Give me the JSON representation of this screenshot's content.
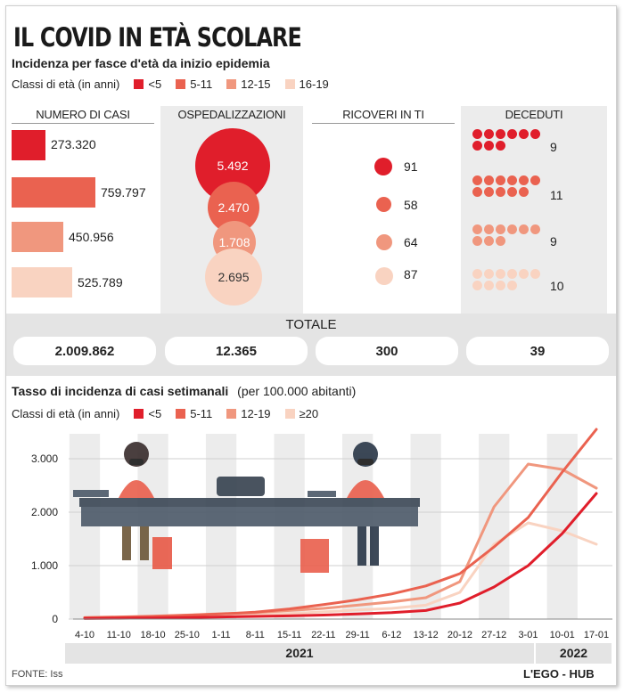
{
  "title": "IL COVID IN ETÀ SCOLARE",
  "section1": {
    "subtitle": "Incidenza per fasce d'età da inizio epidemia",
    "legend_label": "Classi di età (in anni)",
    "legend": [
      {
        "label": "<5",
        "color": "#e01e2b"
      },
      {
        "label": "5-11",
        "color": "#ea6250"
      },
      {
        "label": "12-15",
        "color": "#f0977e"
      },
      {
        "label": "16-19",
        "color": "#f9d3c1"
      }
    ],
    "columns": {
      "casi": {
        "header": "NUMERO DI CASI",
        "values": [
          "273.320",
          "759.797",
          "450.956",
          "525.789"
        ],
        "numbers": [
          273320,
          759797,
          450956,
          525789
        ]
      },
      "osp": {
        "header": "OSPEDALIZZAZIONI",
        "values": [
          "5.492",
          "2.470",
          "1.708",
          "2.695"
        ]
      },
      "ti": {
        "header": "RICOVERI IN TI",
        "values": [
          "91",
          "58",
          "64",
          "87"
        ]
      },
      "deceduti": {
        "header": "DECEDUTI",
        "values": [
          "9",
          "11",
          "9",
          "10"
        ],
        "counts": [
          9,
          11,
          9,
          10
        ]
      }
    },
    "totale": {
      "label": "TOTALE",
      "values": [
        "2.009.862",
        "12.365",
        "300",
        "39"
      ]
    }
  },
  "section2": {
    "subtitle": "Tasso di incidenza di casi setimanali",
    "subtitle_note": "(per 100.000 abitanti)",
    "legend_label": "Classi di età (in anni)",
    "legend": [
      {
        "label": "<5",
        "color": "#e01e2b"
      },
      {
        "label": "5-11",
        "color": "#ea6250"
      },
      {
        "label": "12-19",
        "color": "#f0977e"
      },
      {
        "label": "≥20",
        "color": "#f9d3c1"
      }
    ],
    "years": [
      "2021",
      "2022"
    ]
  },
  "chart_data": {
    "type": "line",
    "title": "Tasso di incidenza di casi setimanali",
    "ylabel": "per 100.000 abitanti",
    "xlabel": "",
    "ylim": [
      0,
      3500
    ],
    "yticks": [
      "0",
      "1.000",
      "2.000",
      "3.000"
    ],
    "ytick_values": [
      0,
      1000,
      2000,
      3000
    ],
    "categories": [
      "4-10",
      "11-10",
      "18-10",
      "25-10",
      "1-11",
      "8-11",
      "15-11",
      "22-11",
      "29-11",
      "6-12",
      "13-12",
      "20-12",
      "27-12",
      "3-01",
      "10-01",
      "17-01"
    ],
    "series": [
      {
        "name": "<5",
        "color": "#e01e2b",
        "values": [
          10,
          15,
          20,
          30,
          40,
          50,
          60,
          75,
          95,
          120,
          160,
          300,
          600,
          1000,
          1600,
          2350
        ]
      },
      {
        "name": "5-11",
        "color": "#ea6250",
        "values": [
          25,
          35,
          50,
          70,
          95,
          130,
          190,
          270,
          360,
          470,
          620,
          850,
          1350,
          1900,
          2750,
          3550
        ]
      },
      {
        "name": "12-19",
        "color": "#f0977e",
        "values": [
          30,
          40,
          55,
          75,
          100,
          120,
          160,
          200,
          260,
          320,
          400,
          700,
          2100,
          2900,
          2800,
          2450
        ]
      },
      {
        "name": "≥20",
        "color": "#f9d3c1",
        "values": [
          20,
          25,
          35,
          45,
          60,
          80,
          105,
          135,
          170,
          200,
          260,
          500,
          1400,
          1800,
          1650,
          1400
        ]
      }
    ]
  },
  "footer": {
    "source": "FONTE: Iss",
    "brand": "L'EGO - HUB"
  }
}
